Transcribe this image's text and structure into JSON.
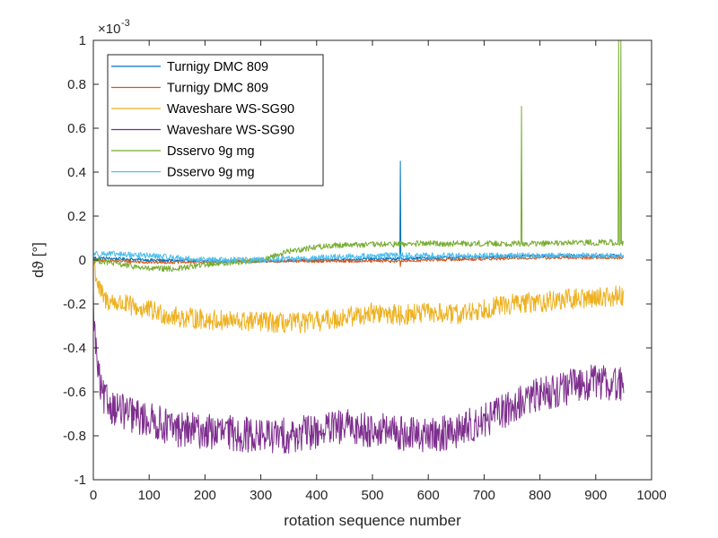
{
  "chart_data": {
    "type": "line",
    "title": "",
    "xlabel": "rotation sequence number",
    "ylabel": "dϑ [°]",
    "exponent_label": "×10",
    "exponent_power": "-3",
    "xlim": [
      0,
      1000
    ],
    "ylim": [
      -1,
      1
    ],
    "xticks": [
      0,
      100,
      200,
      300,
      400,
      500,
      600,
      700,
      800,
      900,
      1000
    ],
    "yticks": [
      -1,
      -0.8,
      -0.6,
      -0.4,
      -0.2,
      0,
      0.2,
      0.4,
      0.6,
      0.8,
      1
    ],
    "ytick_labels": [
      "-1",
      "-0.8",
      "-0.6",
      "-0.4",
      "-0.2",
      "0",
      "0.2",
      "0.4",
      "0.6",
      "0.8",
      "1"
    ],
    "xtick_labels": [
      "0",
      "100",
      "200",
      "300",
      "400",
      "500",
      "600",
      "700",
      "800",
      "900",
      "1000"
    ],
    "legend_position": "top-left",
    "grid": false,
    "series": [
      {
        "name": "Turnigy DMC 809",
        "color": "#0072BD",
        "x_end": 950,
        "points": [
          [
            0,
            0.01
          ],
          [
            100,
            0.0
          ],
          [
            200,
            -0.005
          ],
          [
            300,
            -0.005
          ],
          [
            400,
            0.0
          ],
          [
            500,
            0.005
          ],
          [
            549,
            0.005
          ],
          [
            550,
            0.45
          ],
          [
            551,
            0.005
          ],
          [
            600,
            0.01
          ],
          [
            700,
            0.015
          ],
          [
            800,
            0.02
          ],
          [
            900,
            0.02
          ],
          [
            950,
            0.02
          ]
        ],
        "noise": 0.004
      },
      {
        "name": "Turnigy DMC 809",
        "color": "#D95319",
        "x_end": 950,
        "points": [
          [
            0,
            0.0
          ],
          [
            100,
            -0.01
          ],
          [
            200,
            -0.01
          ],
          [
            300,
            -0.005
          ],
          [
            400,
            -0.005
          ],
          [
            500,
            -0.005
          ],
          [
            549,
            -0.005
          ],
          [
            550,
            -0.03
          ],
          [
            551,
            -0.005
          ],
          [
            600,
            0.0
          ],
          [
            700,
            0.005
          ],
          [
            800,
            0.01
          ],
          [
            900,
            0.01
          ],
          [
            950,
            0.01
          ]
        ],
        "noise": 0.004
      },
      {
        "name": "Waveshare WS-SG90",
        "color": "#EDB120",
        "x_end": 950,
        "points": [
          [
            0,
            0.0
          ],
          [
            5,
            -0.07
          ],
          [
            10,
            -0.13
          ],
          [
            20,
            -0.18
          ],
          [
            50,
            -0.2
          ],
          [
            100,
            -0.23
          ],
          [
            150,
            -0.26
          ],
          [
            200,
            -0.27
          ],
          [
            250,
            -0.28
          ],
          [
            300,
            -0.28
          ],
          [
            350,
            -0.29
          ],
          [
            400,
            -0.28
          ],
          [
            450,
            -0.26
          ],
          [
            500,
            -0.24
          ],
          [
            550,
            -0.25
          ],
          [
            600,
            -0.24
          ],
          [
            650,
            -0.25
          ],
          [
            700,
            -0.22
          ],
          [
            750,
            -0.2
          ],
          [
            800,
            -0.19
          ],
          [
            850,
            -0.18
          ],
          [
            900,
            -0.17
          ],
          [
            950,
            -0.16
          ]
        ],
        "noise": 0.028
      },
      {
        "name": "Waveshare WS-SG90",
        "color": "#7E2F8E",
        "x_end": 950,
        "points": [
          [
            0,
            -0.2
          ],
          [
            3,
            -0.35
          ],
          [
            8,
            -0.5
          ],
          [
            15,
            -0.62
          ],
          [
            30,
            -0.66
          ],
          [
            60,
            -0.7
          ],
          [
            100,
            -0.73
          ],
          [
            150,
            -0.77
          ],
          [
            200,
            -0.78
          ],
          [
            250,
            -0.79
          ],
          [
            300,
            -0.8
          ],
          [
            350,
            -0.8
          ],
          [
            400,
            -0.78
          ],
          [
            450,
            -0.76
          ],
          [
            500,
            -0.77
          ],
          [
            550,
            -0.79
          ],
          [
            600,
            -0.8
          ],
          [
            650,
            -0.78
          ],
          [
            700,
            -0.73
          ],
          [
            750,
            -0.67
          ],
          [
            800,
            -0.61
          ],
          [
            850,
            -0.58
          ],
          [
            900,
            -0.55
          ],
          [
            950,
            -0.57
          ]
        ],
        "noise": 0.048
      },
      {
        "name": "Dsservo 9g mg",
        "color": "#77AC30",
        "x_end": 950,
        "points": [
          [
            0,
            0.0
          ],
          [
            50,
            -0.02
          ],
          [
            100,
            -0.04
          ],
          [
            150,
            -0.04
          ],
          [
            200,
            -0.02
          ],
          [
            250,
            -0.01
          ],
          [
            300,
            0.0
          ],
          [
            350,
            0.04
          ],
          [
            400,
            0.06
          ],
          [
            450,
            0.07
          ],
          [
            500,
            0.07
          ],
          [
            600,
            0.075
          ],
          [
            700,
            0.075
          ],
          [
            766,
            0.075
          ],
          [
            767,
            0.7
          ],
          [
            768,
            0.075
          ],
          [
            800,
            0.075
          ],
          [
            900,
            0.08
          ],
          [
            940,
            0.08
          ],
          [
            941,
            1.0
          ],
          [
            942,
            0.08
          ],
          [
            944,
            0.08
          ],
          [
            945,
            1.0
          ],
          [
            946,
            0.08
          ],
          [
            950,
            0.08
          ]
        ],
        "noise": 0.008
      },
      {
        "name": "Dsservo 9g mg",
        "color": "#4DBEEE",
        "x_end": 950,
        "points": [
          [
            0,
            0.03
          ],
          [
            50,
            0.025
          ],
          [
            100,
            0.02
          ],
          [
            150,
            0.01
          ],
          [
            200,
            0.0
          ],
          [
            250,
            0.0
          ],
          [
            300,
            0.0
          ],
          [
            350,
            0.005
          ],
          [
            400,
            0.01
          ],
          [
            450,
            0.015
          ],
          [
            500,
            0.02
          ],
          [
            600,
            0.02
          ],
          [
            700,
            0.02
          ],
          [
            800,
            0.02
          ],
          [
            900,
            0.02
          ],
          [
            950,
            0.02
          ]
        ],
        "noise": 0.008
      }
    ]
  }
}
